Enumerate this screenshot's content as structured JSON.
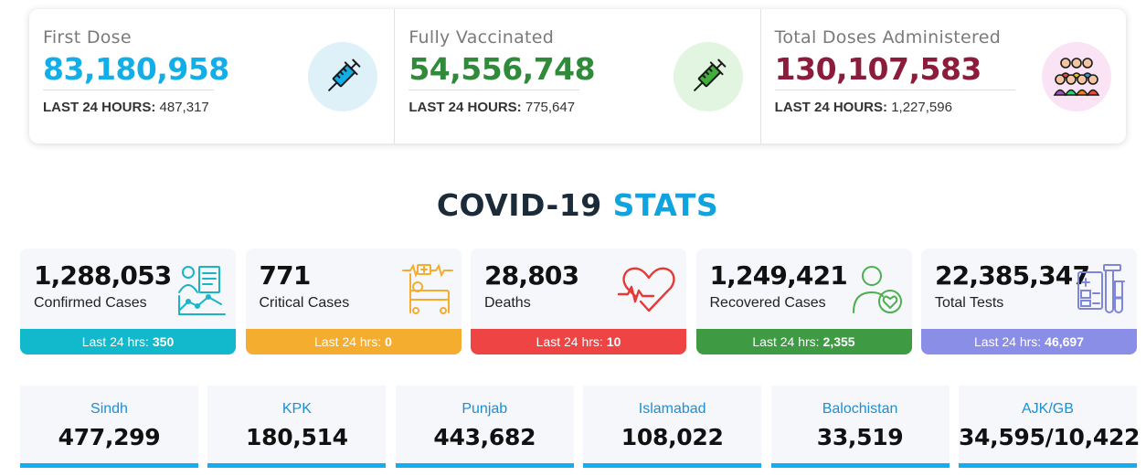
{
  "colors": {
    "first_dose": "#12aee8",
    "fully_vaccinated": "#2f8a3a",
    "total_doses": "#8b1c3b",
    "confirmed": "#12b8cb",
    "critical": "#f5ad30",
    "deaths": "#ef4444",
    "recovered": "#3e9b44",
    "tests": "#8b8ee6",
    "province_accent": "#12aef0"
  },
  "vaccination": [
    {
      "title": "First Dose",
      "value": "83,180,958",
      "sub_label": "LAST 24 HOURS:",
      "sub_value": "487,317",
      "icon": "syringe-icon"
    },
    {
      "title": "Fully Vaccinated",
      "value": "54,556,748",
      "sub_label": "LAST 24 HOURS:",
      "sub_value": "775,647",
      "icon": "syringe-icon"
    },
    {
      "title": "Total Doses Administered",
      "value": "130,107,583",
      "sub_label": "LAST 24 HOURS:",
      "sub_value": "1,227,596",
      "icon": "crowd-icon"
    }
  ],
  "heading": {
    "part1": "COVID-19",
    "part2": "STATS"
  },
  "stats": [
    {
      "value": "1,288,053",
      "label": "Confirmed Cases",
      "bar_label": "Last 24 hrs:",
      "bar_value": "350",
      "icon": "doctor-chart-icon"
    },
    {
      "value": "771",
      "label": "Critical Cases",
      "bar_label": "Last 24 hrs:",
      "bar_value": "0",
      "icon": "hospital-bed-icon"
    },
    {
      "value": "28,803",
      "label": "Deaths",
      "bar_label": "Last 24 hrs:",
      "bar_value": "10",
      "icon": "heartbeat-icon"
    },
    {
      "value": "1,249,421",
      "label": "Recovered Cases",
      "bar_label": "Last 24 hrs:",
      "bar_value": "2,355",
      "icon": "recovered-person-icon"
    },
    {
      "value": "22,385,347",
      "label": "Total Tests",
      "bar_label": "Last 24 hrs:",
      "bar_value": "46,697",
      "icon": "test-tubes-icon"
    }
  ],
  "provinces": [
    {
      "name": "Sindh",
      "value": "477,299"
    },
    {
      "name": "KPK",
      "value": "180,514"
    },
    {
      "name": "Punjab",
      "value": "443,682"
    },
    {
      "name": "Islamabad",
      "value": "108,022"
    },
    {
      "name": "Balochistan",
      "value": "33,519"
    },
    {
      "name": "AJK/GB",
      "value": "34,595/10,422"
    }
  ]
}
